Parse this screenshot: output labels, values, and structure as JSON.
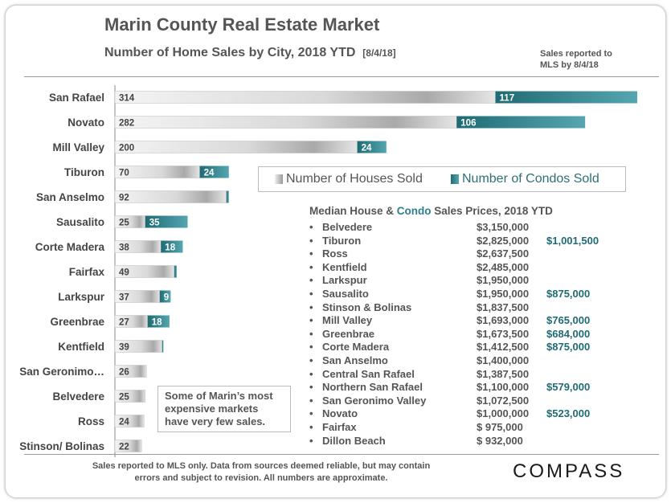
{
  "title": "Marin County Real Estate Market",
  "subtitle": "Number of Home Sales by City, 2018 YTD",
  "subtitle_date": "[8/4/18]",
  "note_top": [
    "Sales reported to",
    "MLS by 8/4/18"
  ],
  "callout": [
    "Some of Marin’s most",
    "expensive markets",
    "have very few sales."
  ],
  "footer": [
    "Sales reported to MLS only. Data from sources  deemed reliable, but may contain",
    "errors and subject to revision. All numbers are approximate."
  ],
  "logo": "COMPASS",
  "colors": {
    "houses": "#c8c8c8",
    "condos": "#2e7f8a",
    "text": "#555555"
  },
  "chart_data": {
    "type": "bar",
    "orientation": "horizontal",
    "stacked": true,
    "categories": [
      "San Rafael",
      "Novato",
      "Mill Valley",
      "Tiburon",
      "San Anselmo",
      "Sausalito",
      "Corte Madera",
      "Fairfax",
      "Larkspur",
      "Greenbrae",
      "Kentfield",
      "San Geronimo…",
      "Belvedere",
      "Ross",
      "Stinson/ Bolinas"
    ],
    "series": [
      {
        "name": "Number of Houses Sold",
        "values": [
          314,
          282,
          200,
          70,
          92,
          25,
          38,
          49,
          37,
          27,
          39,
          26,
          25,
          24,
          22
        ]
      },
      {
        "name": "Number of Condos Sold",
        "values": [
          117,
          106,
          24,
          24,
          2,
          35,
          18,
          2,
          9,
          18,
          1,
          0,
          0,
          0,
          0
        ]
      }
    ],
    "labels_houses": [
      "314",
      "282",
      "200",
      "70",
      "92",
      "25",
      "38",
      "49",
      "37",
      "27",
      "39",
      "26",
      "25",
      "24",
      "22"
    ],
    "labels_condos": [
      "117",
      "106",
      "24",
      "24",
      "",
      "35",
      "18",
      "",
      "9",
      "18",
      "",
      "",
      "",
      "",
      ""
    ],
    "xlim": [
      0,
      431
    ],
    "legend": "inside, middle-right"
  },
  "prices": {
    "head_a": "Median House & ",
    "head_b": "Condo",
    "head_c": " Sales  Prices, 2018  YTD",
    "bullet": "•",
    "rows": [
      {
        "city": "Belvedere",
        "house": "$3,150,000",
        "condo": ""
      },
      {
        "city": "Tiburon",
        "house": "$2,825,000",
        "condo": "$1,001,500"
      },
      {
        "city": "Ross",
        "house": "$2,637,500",
        "condo": ""
      },
      {
        "city": "Kentfield",
        "house": "$2,485,000",
        "condo": ""
      },
      {
        "city": "Larkspur",
        "house": "$1,950,000",
        "condo": ""
      },
      {
        "city": "Sausalito",
        "house": "$1,950,000",
        "condo": "$875,000"
      },
      {
        "city": "Stinson & Bolinas",
        "house": "$1,837,500",
        "condo": ""
      },
      {
        "city": "Mill Valley",
        "house": "$1,693,000",
        "condo": "$765,000"
      },
      {
        "city": "Greenbrae",
        "house": "$1,673,500",
        "condo": "$684,000"
      },
      {
        "city": "Corte Madera",
        "house": "$1,412,500",
        "condo": "$875,000"
      },
      {
        "city": "San Anselmo",
        "house": "$1,400,000",
        "condo": ""
      },
      {
        "city": "Central San Rafael",
        "house": "$1,387,500",
        "condo": ""
      },
      {
        "city": "Northern San Rafael",
        "house": "$1,100,000",
        "condo": "$579,000"
      },
      {
        "city": "San Geronimo Valley",
        "house": "$1,072,500",
        "condo": ""
      },
      {
        "city": "Novato",
        "house": "$1,000,000",
        "condo": "$523,000"
      },
      {
        "city": "Fairfax",
        "house": "$  975,000",
        "condo": ""
      },
      {
        "city": "Dillon Beach",
        "house": "$  932,000",
        "condo": ""
      }
    ]
  }
}
